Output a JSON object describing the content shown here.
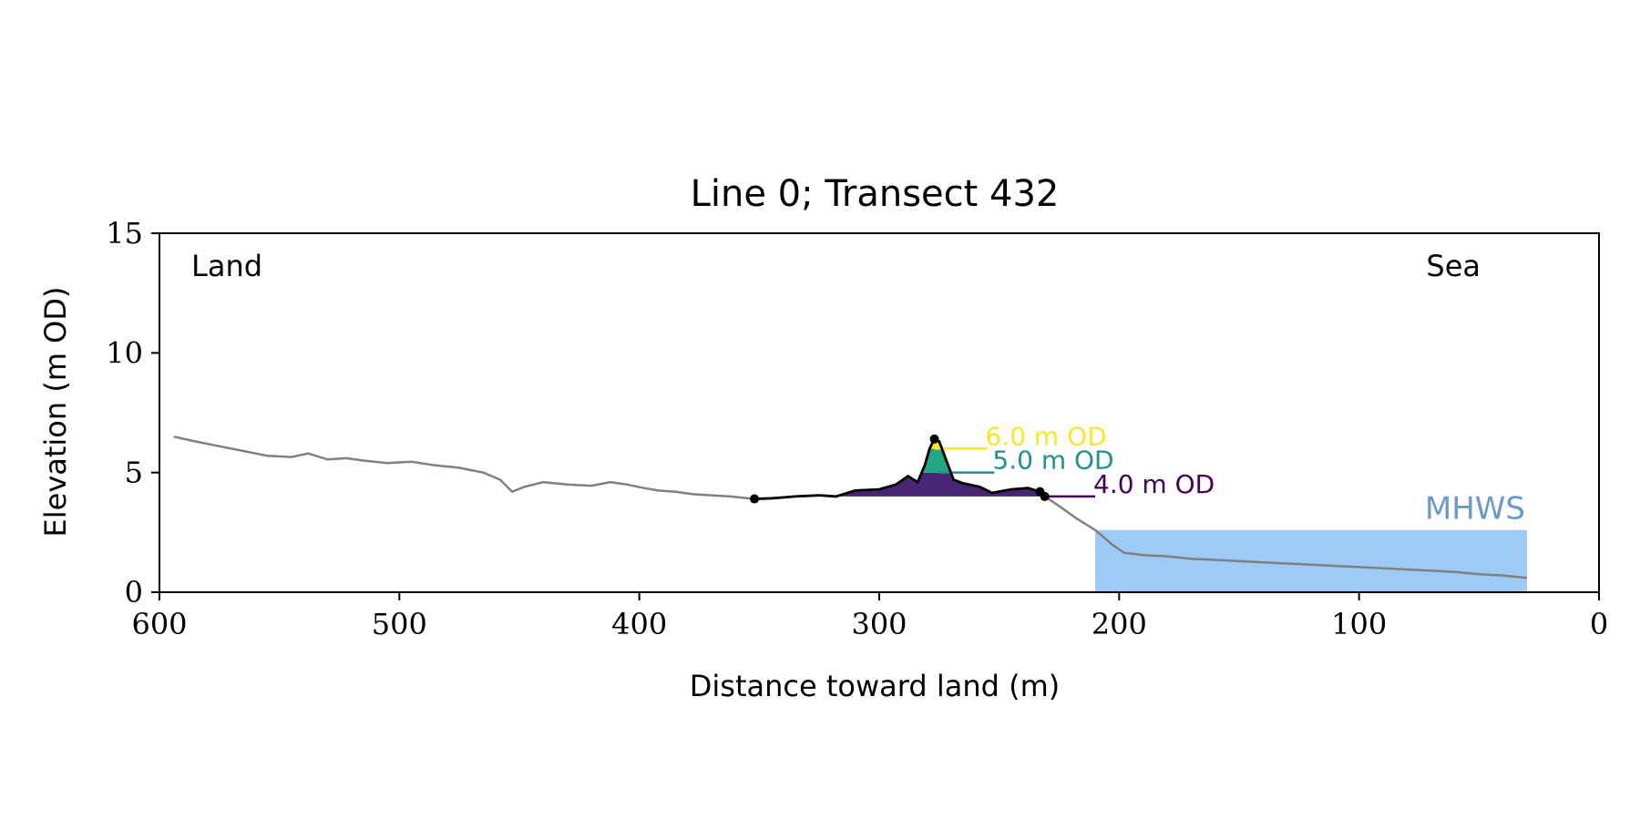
{
  "chart_data": {
    "type": "area",
    "title": "Line 0; Transect 432",
    "xlabel": "Distance toward land (m)",
    "ylabel": "Elevation (m OD)",
    "xlim": [
      600,
      0
    ],
    "ylim": [
      0,
      15
    ],
    "x_ticks": [
      600,
      500,
      400,
      300,
      200,
      100,
      0
    ],
    "y_ticks": [
      0,
      5,
      10,
      15
    ],
    "grid": false,
    "corner_labels": {
      "left": "Land",
      "right": "Sea"
    },
    "colors": {
      "profile": "#808080",
      "dune_outline": "#000000",
      "sea": "#9ecbf6",
      "mhws_text": "#6c9ac8",
      "level_4": "#440154",
      "level_5": "#21918c",
      "level_6": "#fde725",
      "fill_4_5": "#482575",
      "fill_5_6": "#22a884",
      "fill_6_top": "#fde725"
    },
    "mhws": {
      "label": "MHWS",
      "elevation": 2.6,
      "x_range": [
        210,
        30
      ]
    },
    "levels": [
      {
        "value": 4.0,
        "label": "4.0 m OD",
        "x_from": 232,
        "x_to": 210
      },
      {
        "value": 5.0,
        "label": "5.0 m OD",
        "x_from": 275,
        "x_to": 252
      },
      {
        "value": 6.0,
        "label": "6.0 m OD",
        "x_from": 277,
        "x_to": 255
      }
    ],
    "profile": [
      [
        594,
        6.5
      ],
      [
        585,
        6.3
      ],
      [
        575,
        6.1
      ],
      [
        565,
        5.9
      ],
      [
        555,
        5.7
      ],
      [
        545,
        5.65
      ],
      [
        538,
        5.8
      ],
      [
        530,
        5.55
      ],
      [
        522,
        5.6
      ],
      [
        515,
        5.5
      ],
      [
        505,
        5.4
      ],
      [
        495,
        5.45
      ],
      [
        485,
        5.3
      ],
      [
        475,
        5.2
      ],
      [
        465,
        5.0
      ],
      [
        458,
        4.7
      ],
      [
        453,
        4.2
      ],
      [
        448,
        4.4
      ],
      [
        440,
        4.6
      ],
      [
        430,
        4.5
      ],
      [
        420,
        4.45
      ],
      [
        412,
        4.6
      ],
      [
        405,
        4.5
      ],
      [
        398,
        4.35
      ],
      [
        392,
        4.25
      ],
      [
        385,
        4.2
      ],
      [
        378,
        4.1
      ],
      [
        370,
        4.05
      ],
      [
        362,
        4.0
      ],
      [
        352,
        3.9
      ],
      [
        345,
        3.92
      ],
      [
        335,
        4.0
      ],
      [
        325,
        4.05
      ],
      [
        318,
        4.0
      ],
      [
        310,
        4.25
      ],
      [
        300,
        4.3
      ],
      [
        293,
        4.5
      ],
      [
        288,
        4.85
      ],
      [
        284,
        4.6
      ],
      [
        281,
        5.3
      ],
      [
        279,
        6.0
      ],
      [
        277,
        6.4
      ],
      [
        275,
        6.3
      ],
      [
        272,
        5.5
      ],
      [
        269,
        4.7
      ],
      [
        265,
        4.55
      ],
      [
        258,
        4.4
      ],
      [
        253,
        4.15
      ],
      [
        245,
        4.3
      ],
      [
        238,
        4.35
      ],
      [
        233,
        4.2
      ],
      [
        231,
        4.0
      ],
      [
        225,
        3.6
      ],
      [
        218,
        3.1
      ],
      [
        210,
        2.6
      ],
      [
        203,
        2.0
      ],
      [
        198,
        1.65
      ],
      [
        190,
        1.55
      ],
      [
        180,
        1.5
      ],
      [
        170,
        1.4
      ],
      [
        160,
        1.35
      ],
      [
        150,
        1.3
      ],
      [
        140,
        1.25
      ],
      [
        130,
        1.2
      ],
      [
        120,
        1.15
      ],
      [
        110,
        1.1
      ],
      [
        100,
        1.05
      ],
      [
        90,
        1.0
      ],
      [
        80,
        0.95
      ],
      [
        70,
        0.9
      ],
      [
        60,
        0.85
      ],
      [
        50,
        0.75
      ],
      [
        40,
        0.7
      ],
      [
        30,
        0.6
      ]
    ],
    "dune_outline": [
      [
        352,
        3.9
      ],
      [
        345,
        3.92
      ],
      [
        335,
        4.0
      ],
      [
        325,
        4.05
      ],
      [
        318,
        4.0
      ],
      [
        310,
        4.25
      ],
      [
        300,
        4.3
      ],
      [
        293,
        4.5
      ],
      [
        288,
        4.85
      ],
      [
        284,
        4.6
      ],
      [
        281,
        5.3
      ],
      [
        279,
        6.0
      ],
      [
        277,
        6.4
      ],
      [
        275,
        6.3
      ],
      [
        272,
        5.5
      ],
      [
        269,
        4.7
      ],
      [
        265,
        4.55
      ],
      [
        258,
        4.4
      ],
      [
        253,
        4.15
      ],
      [
        245,
        4.3
      ],
      [
        238,
        4.35
      ],
      [
        233,
        4.2
      ],
      [
        231,
        4.0
      ]
    ],
    "dune_points": [
      [
        352,
        3.9
      ],
      [
        277,
        6.4
      ],
      [
        233,
        4.2
      ],
      [
        231,
        4.0
      ]
    ]
  }
}
